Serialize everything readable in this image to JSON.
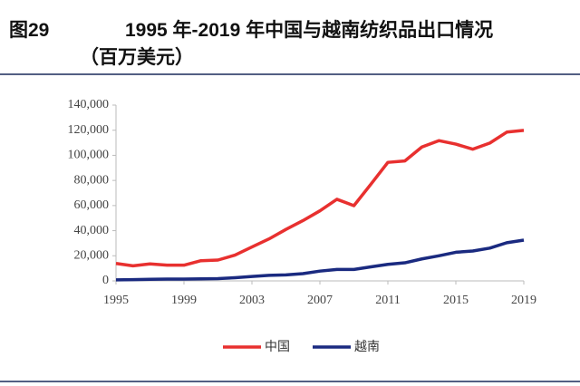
{
  "chart_data": {
    "type": "line",
    "figure_label": "图29",
    "title": "1995 年-2019 年中国与越南纺织品出口情况",
    "subtitle": "（百万美元）",
    "x": [
      1995,
      1996,
      1997,
      1998,
      1999,
      2000,
      2001,
      2002,
      2003,
      2004,
      2005,
      2006,
      2007,
      2008,
      2009,
      2010,
      2011,
      2012,
      2013,
      2014,
      2015,
      2016,
      2017,
      2018,
      2019
    ],
    "xlim": [
      1995,
      2019
    ],
    "xticks": [
      1995,
      1999,
      2003,
      2007,
      2011,
      2015,
      2019
    ],
    "ylim": [
      0,
      140000
    ],
    "yticks": [
      0,
      {
        "value": 20000,
        "label": "20,000"
      },
      {
        "value": 40000,
        "label": "40,000"
      },
      {
        "value": 60000,
        "label": "60,000"
      },
      {
        "value": 80000,
        "label": "80,000"
      },
      {
        "value": 100000,
        "label": "100,000"
      },
      {
        "value": 120000,
        "label": "120,000"
      },
      {
        "value": 140000,
        "label": "140,000"
      }
    ],
    "grid": false,
    "legend": "bottom",
    "series": [
      {
        "name": "中国",
        "color": "#e8302f",
        "values": [
          13900,
          12000,
          13500,
          12500,
          12500,
          16100,
          16600,
          20500,
          27000,
          33400,
          41000,
          48000,
          55800,
          65000,
          59900,
          77000,
          94400,
          95500,
          106600,
          111700,
          108900,
          104900,
          109800,
          118500,
          119900
        ]
      },
      {
        "name": "越南",
        "color": "#1a2a80",
        "values": [
          800,
          1000,
          1300,
          1400,
          1400,
          1600,
          1800,
          2500,
          3500,
          4400,
          4800,
          5800,
          7800,
          9100,
          9100,
          11200,
          13200,
          14400,
          17500,
          20000,
          22800,
          23800,
          26100,
          30400,
          32500
        ]
      }
    ]
  }
}
